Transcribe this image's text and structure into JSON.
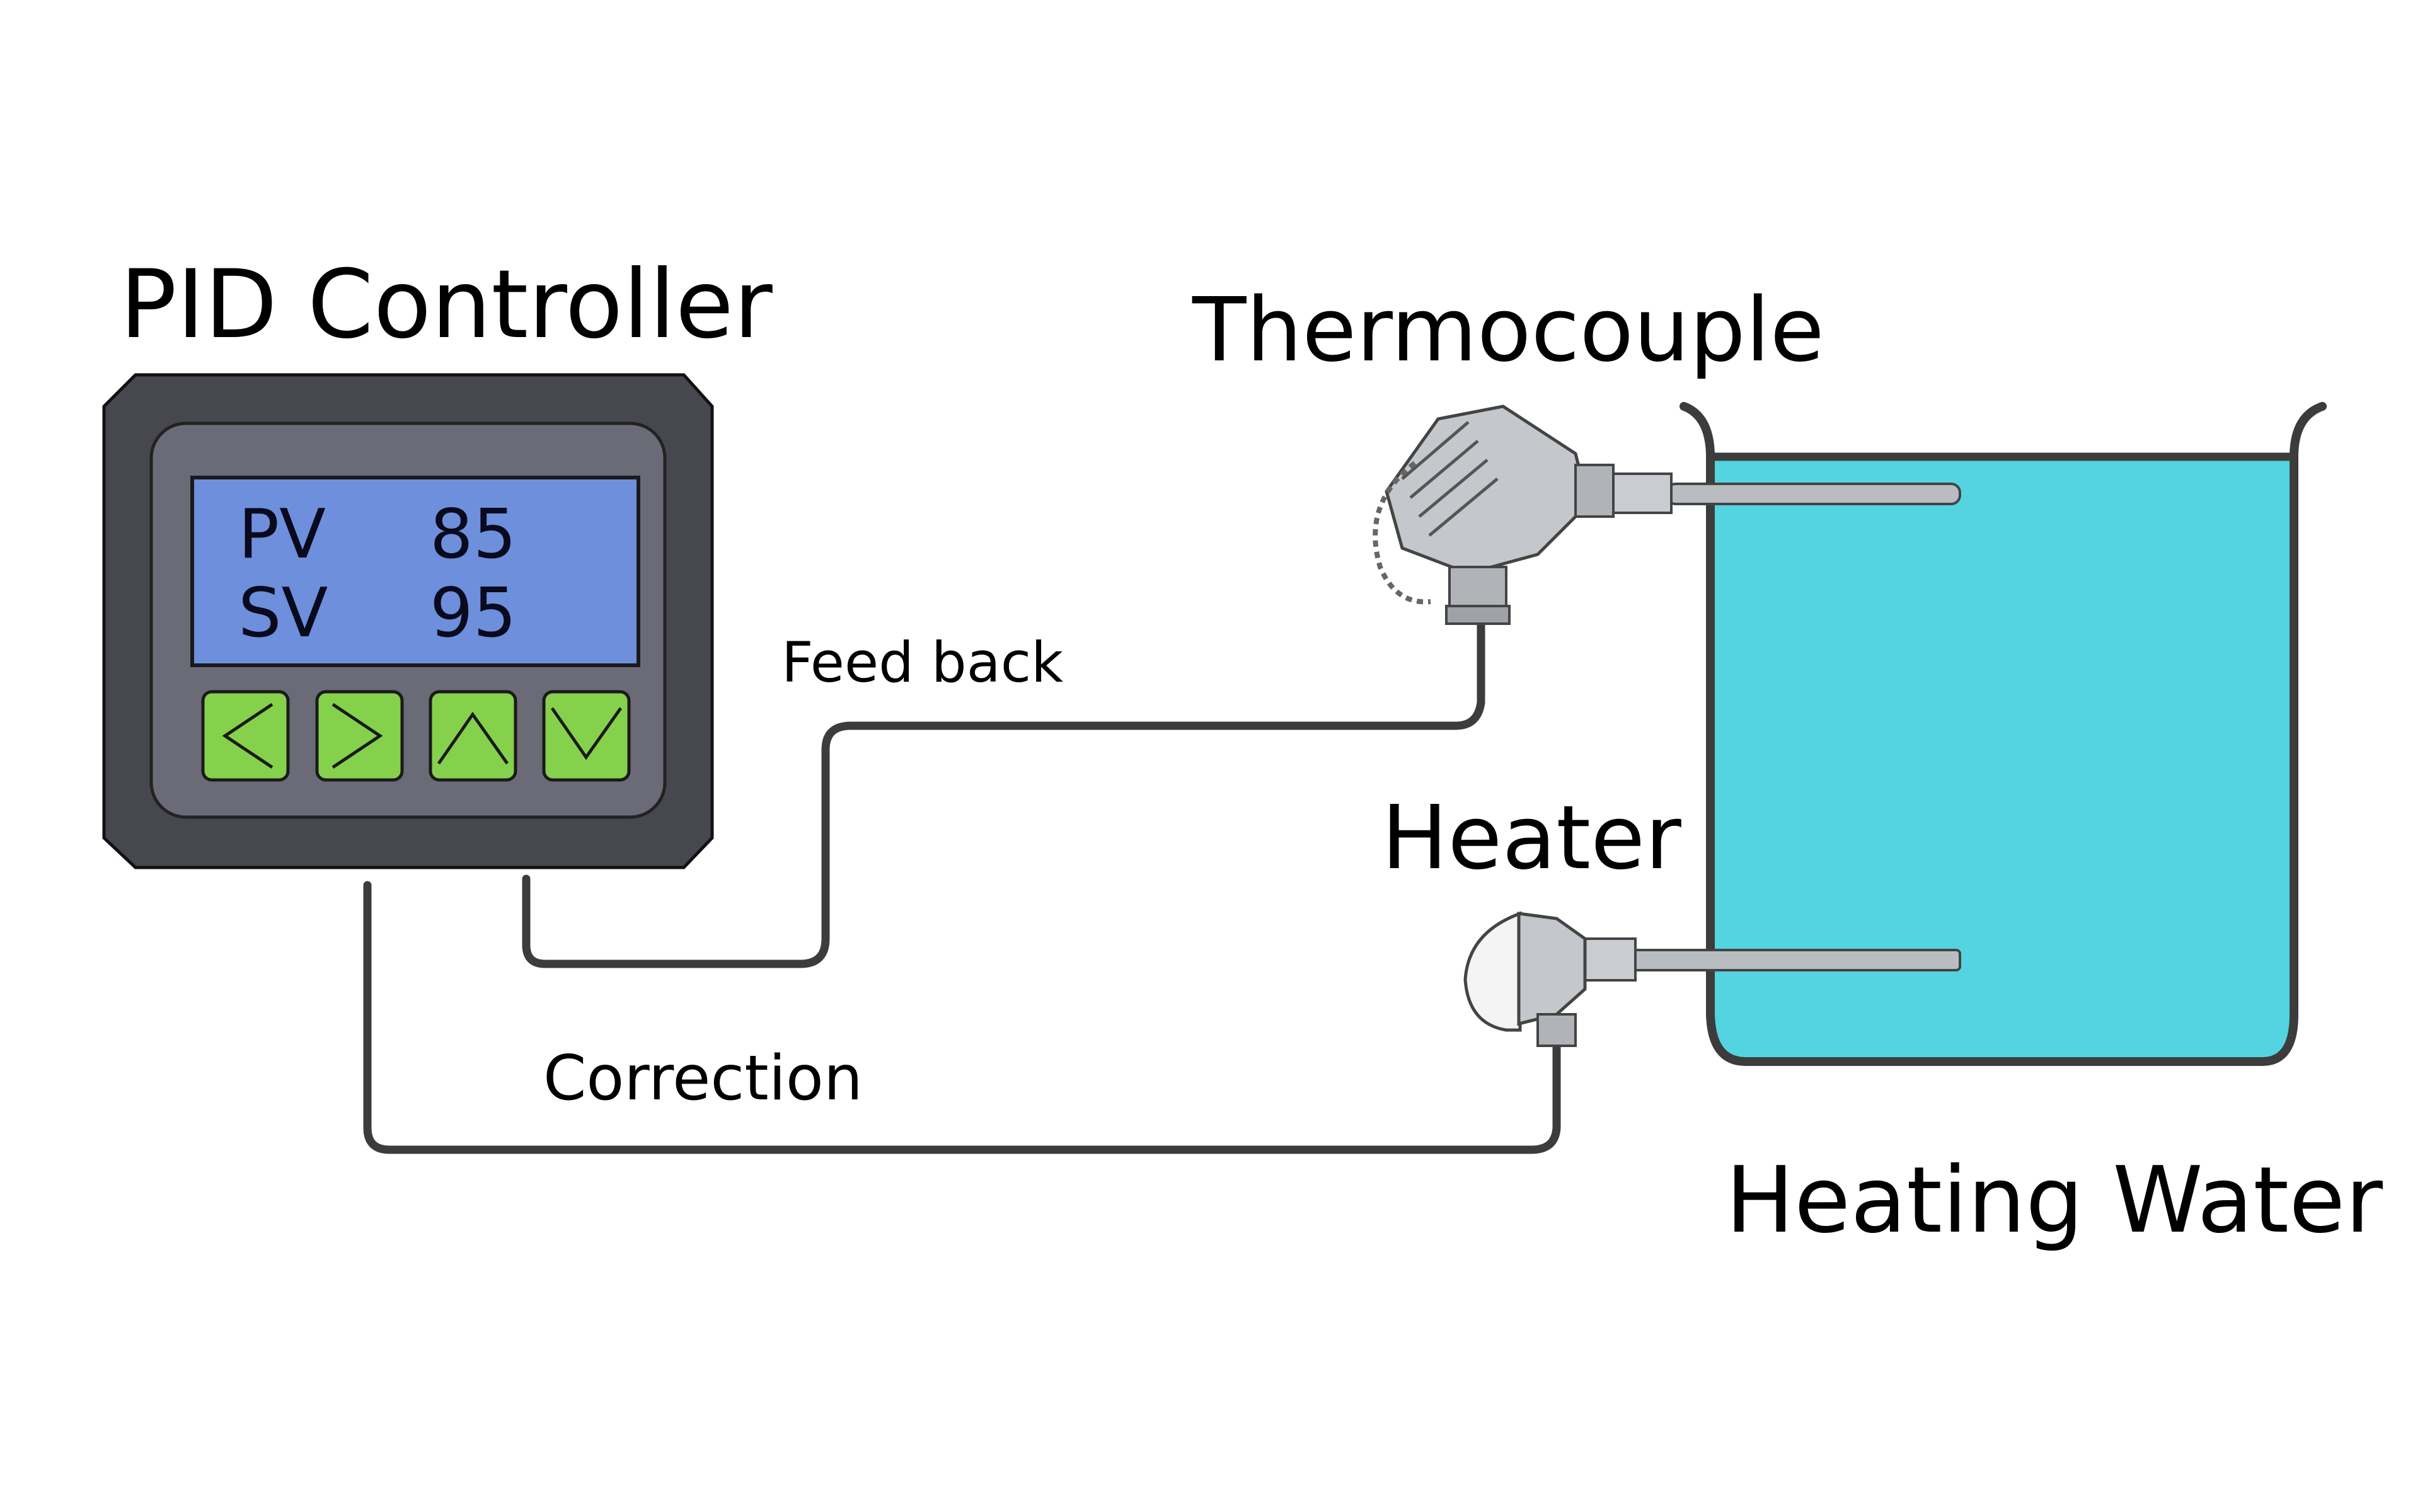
{
  "controller": {
    "title": "PID Controller",
    "display": {
      "pv_label": "PV",
      "pv_value": "85",
      "sv_label": "SV",
      "sv_value": "95"
    },
    "buttons": [
      {
        "icon": "chevron-left-icon"
      },
      {
        "icon": "chevron-right-icon"
      },
      {
        "icon": "chevron-up-icon"
      },
      {
        "icon": "chevron-down-icon"
      }
    ]
  },
  "thermocouple": {
    "label": "Thermocouple"
  },
  "heater": {
    "label": "Heater"
  },
  "tank": {
    "label": "Heating Water"
  },
  "wires": {
    "feedback_label": "Feed back",
    "correction_label": "Correction"
  },
  "colors": {
    "controller_body": "#474750",
    "controller_bezel": "#6b6b78",
    "lcd_screen": "#6d8fdc",
    "button_green": "#86d14c",
    "water": "#53d4e0",
    "wire": "#3c3c3c",
    "metal": "#b9bcc0"
  }
}
